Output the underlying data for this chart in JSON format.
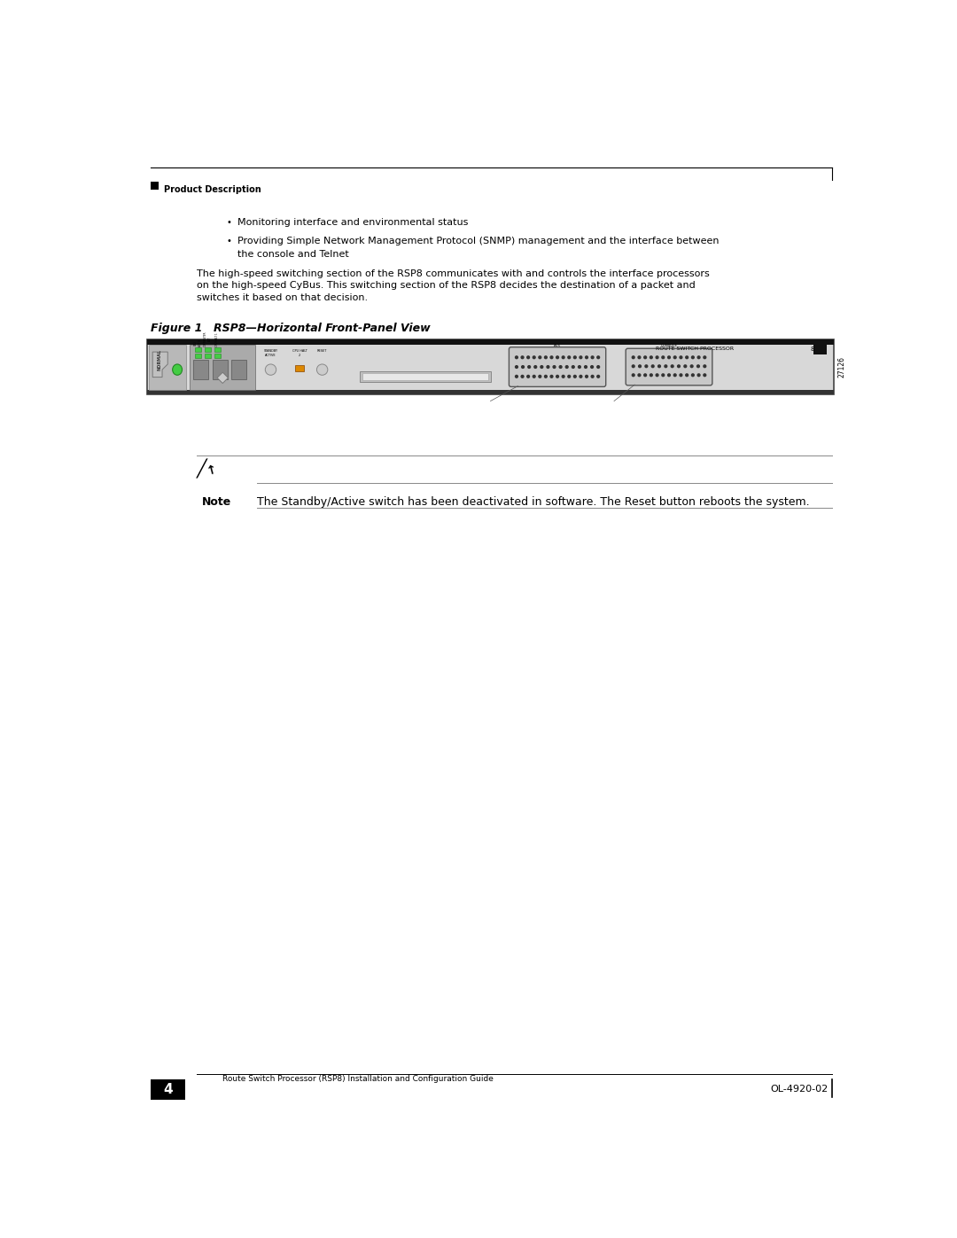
{
  "page_width": 10.8,
  "page_height": 13.97,
  "dpi": 100,
  "background_color": "#ffffff",
  "header_text": "Product Description",
  "footer_page_num": "4",
  "footer_doc_title": "Route Switch Processor (RSP8) Installation and Configuration Guide",
  "footer_doc_code": "OL-4920-02",
  "bullet1": "Monitoring interface and environmental status",
  "bullet2_line1": "Providing Simple Network Management Protocol (SNMP) management and the interface between",
  "bullet2_line2": "the console and Telnet",
  "body_line1": "The high-speed switching section of the RSP8 communicates with and controls the interface processors",
  "body_line2": "on the high-speed CyBus. This switching section of the RSP8 decides the destination of a packet and",
  "body_line3": "switches it based on that decision.",
  "figure_label": "Figure 1",
  "figure_title": "RSP8—Horizontal Front-Panel View",
  "note_label": "Note",
  "note_text": "The Standby/Active switch has been deactivated in software. The Reset button reboots the system.",
  "panel_label_number": "27126"
}
